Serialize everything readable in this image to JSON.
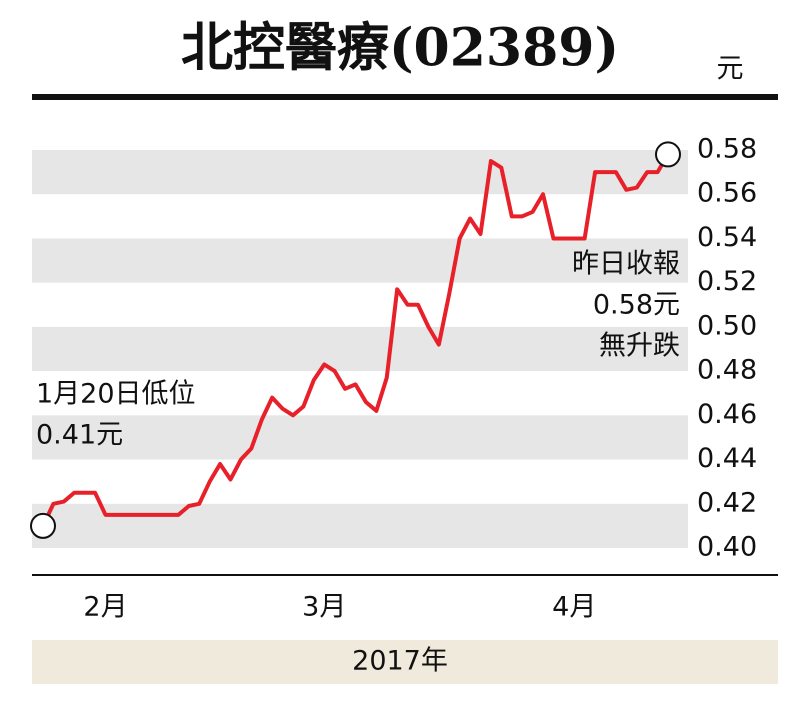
{
  "chart_data": {
    "type": "line",
    "title": "北控醫療(02389)",
    "y_unit": "元",
    "xlabel": "2017年",
    "categories": [
      null,
      null,
      null,
      null,
      null,
      null,
      "2月",
      null,
      null,
      null,
      null,
      null,
      null,
      null,
      null,
      null,
      null,
      null,
      null,
      null,
      null,
      null,
      null,
      null,
      null,
      null,
      null,
      "3月",
      null,
      null,
      null,
      null,
      null,
      null,
      null,
      null,
      null,
      null,
      null,
      null,
      null,
      null,
      null,
      null,
      null,
      null,
      null,
      null,
      null,
      null,
      null,
      "4月",
      null,
      null,
      null,
      null,
      null,
      null,
      null,
      null,
      null
    ],
    "series": [
      {
        "name": "北控醫療",
        "color": "#e8202a",
        "values": [
          0.41,
          0.42,
          0.421,
          0.425,
          0.425,
          0.425,
          0.415,
          0.415,
          0.415,
          0.415,
          0.415,
          0.415,
          0.415,
          0.415,
          0.419,
          0.42,
          0.43,
          0.438,
          0.431,
          0.44,
          0.445,
          0.458,
          0.468,
          0.463,
          0.46,
          0.464,
          0.476,
          0.483,
          0.48,
          0.472,
          0.474,
          0.466,
          0.462,
          0.477,
          0.517,
          0.51,
          0.51,
          0.5,
          0.492,
          0.515,
          0.54,
          0.549,
          0.542,
          0.575,
          0.572,
          0.55,
          0.55,
          0.552,
          0.56,
          0.54,
          0.54,
          0.54,
          0.54,
          0.57,
          0.57,
          0.57,
          0.562,
          0.563,
          0.57,
          0.57,
          0.578
        ]
      }
    ],
    "ylim": [
      0.4,
      0.58
    ],
    "yticks": [
      {
        "value": 0.4,
        "label": "0.40"
      },
      0.42,
      0.44,
      0.46,
      0.48,
      {
        "value": 0.5,
        "label": "0.50"
      },
      0.52,
      0.54,
      0.56,
      0.58
    ],
    "annotations": [
      {
        "lines": [
          "1月20日低位",
          "0.41元"
        ]
      },
      {
        "lines": [
          "昨日收報",
          "0.58元",
          "無升跌"
        ]
      }
    ]
  }
}
